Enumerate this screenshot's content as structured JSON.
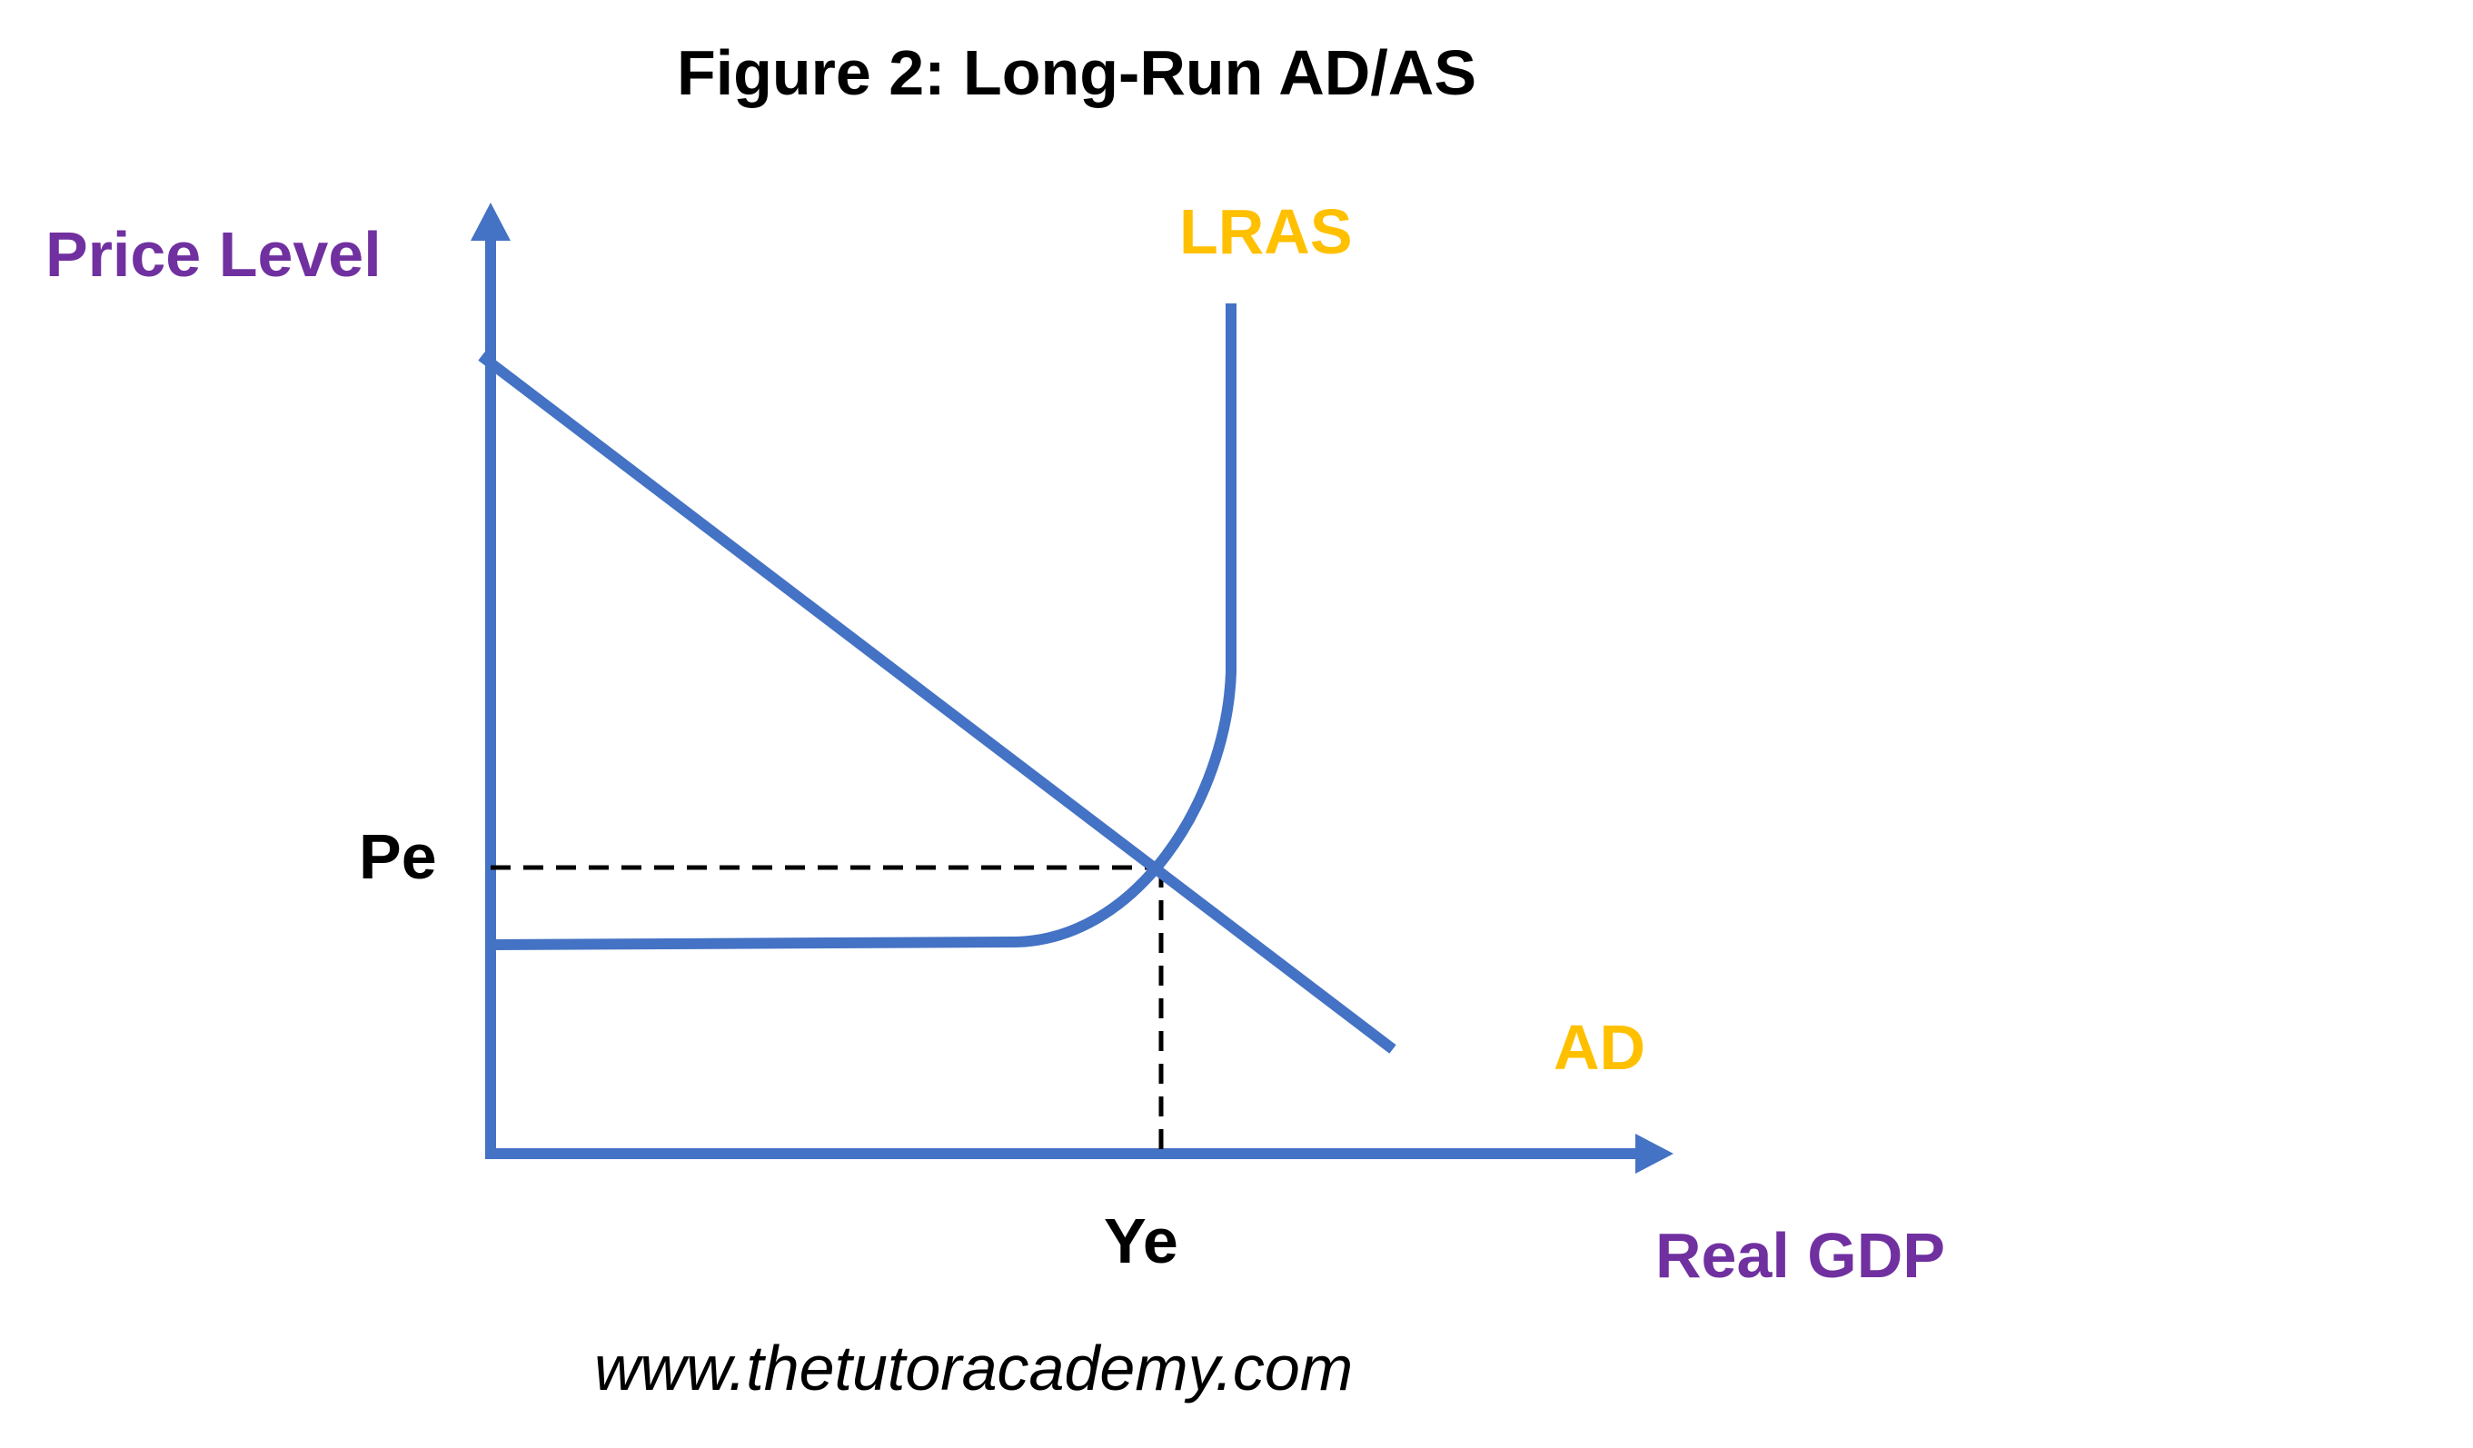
{
  "title": "Figure 2: Long-Run AD/AS",
  "axes": {
    "y_label": "Price Level",
    "x_label": "Real GDP",
    "y_equilibrium_label": "Pe",
    "x_equilibrium_label": "Ye"
  },
  "curves": {
    "lras_label": "LRAS",
    "ad_label": "AD"
  },
  "footer": {
    "url": "www.thetutoracademy.com"
  },
  "colors": {
    "curve": "#4472c4",
    "axis_label": "#7030a0",
    "curve_label": "#ffc000",
    "text": "#000000"
  }
}
